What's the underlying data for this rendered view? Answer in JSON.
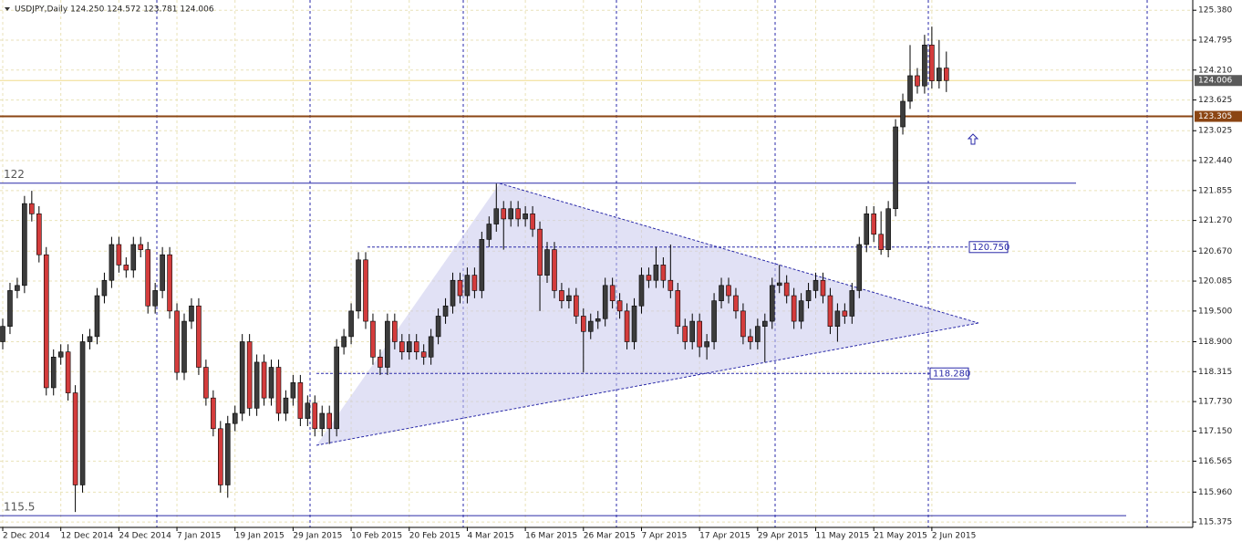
{
  "chart_data": {
    "type": "candlestick",
    "title": "USDJPY,Daily  124.250 124.572 123.781 124.006",
    "categories": [
      "2 Dec 2014",
      null,
      null,
      null,
      null,
      null,
      null,
      null,
      "12 Dec 2014",
      null,
      null,
      null,
      null,
      null,
      null,
      null,
      "24 Dec 2014",
      null,
      null,
      null,
      null,
      null,
      null,
      null,
      "7 Jan 2015",
      null,
      null,
      null,
      null,
      null,
      null,
      null,
      "19 Jan 2015",
      null,
      null,
      null,
      null,
      null,
      null,
      null,
      "29 Jan 2015",
      null,
      null,
      null,
      null,
      null,
      null,
      null,
      "10 Feb 2015",
      null,
      null,
      null,
      null,
      null,
      null,
      null,
      "20 Feb 2015",
      null,
      null,
      null,
      null,
      null,
      null,
      null,
      "4 Mar 2015",
      null,
      null,
      null,
      null,
      null,
      null,
      null,
      "16 Mar 2015",
      null,
      null,
      null,
      null,
      null,
      null,
      null,
      "26 Mar 2015",
      null,
      null,
      null,
      null,
      null,
      null,
      null,
      "7 Apr 2015",
      null,
      null,
      null,
      null,
      null,
      null,
      null,
      "17 Apr 2015",
      null,
      null,
      null,
      null,
      null,
      null,
      null,
      "29 Apr 2015",
      null,
      null,
      null,
      null,
      null,
      null,
      null,
      "11 May 2015",
      null,
      null,
      null,
      null,
      null,
      null,
      null,
      "21 May 2015",
      null,
      null,
      null,
      null,
      null,
      null,
      null,
      "2 Jun 2015",
      null,
      null
    ],
    "series": [
      {
        "name": "USDJPY",
        "up_color": "#3c3c3c",
        "down_color": "#d43c3c",
        "open": [
          118.9,
          119.2,
          119.9,
          120.0,
          121.6,
          121.4,
          120.6,
          118.0,
          118.6,
          118.7,
          117.9,
          116.1,
          118.9,
          119.0,
          119.8,
          120.1,
          120.8,
          120.4,
          120.3,
          120.8,
          120.7,
          119.6,
          119.9,
          120.6,
          119.5,
          118.3,
          119.3,
          119.6,
          118.4,
          117.8,
          117.2,
          116.1,
          117.3,
          117.5,
          118.9,
          117.6,
          118.5,
          117.8,
          118.4,
          117.5,
          117.8,
          118.1,
          117.4,
          117.7,
          117.2,
          117.5,
          117.2,
          118.8,
          119.0,
          119.5,
          120.5,
          119.3,
          118.6,
          118.4,
          119.3,
          118.9,
          118.7,
          118.9,
          118.7,
          118.6,
          119.0,
          119.4,
          119.6,
          120.1,
          119.8,
          120.2,
          119.9,
          120.9,
          121.2,
          121.5,
          121.3,
          121.5,
          121.3,
          121.4,
          121.1,
          120.2,
          120.7,
          119.9,
          119.7,
          119.8,
          119.4,
          119.1,
          119.3,
          119.35,
          120.0,
          119.7,
          119.5,
          118.9,
          119.6,
          120.2,
          120.1,
          120.4,
          120.1,
          119.9,
          119.2,
          118.9,
          119.3,
          118.8,
          118.9,
          119.7,
          120.0,
          119.8,
          119.5,
          119.0,
          118.9,
          119.2,
          119.3,
          120.0,
          120.05,
          119.8,
          119.3,
          119.7,
          119.9,
          120.1,
          119.8,
          119.2,
          119.5,
          119.4,
          119.9,
          120.8,
          121.4,
          121.0,
          120.7,
          121.5,
          123.1,
          123.6,
          124.1,
          123.9,
          124.7,
          124.0,
          124.25
        ],
        "high": [
          119.35,
          120.05,
          120.15,
          121.75,
          121.85,
          121.55,
          120.75,
          118.75,
          118.85,
          118.85,
          118.05,
          119.05,
          119.15,
          119.95,
          120.25,
          120.95,
          120.95,
          120.55,
          120.95,
          120.95,
          120.85,
          120.05,
          120.75,
          120.75,
          119.65,
          119.45,
          119.75,
          119.75,
          118.55,
          117.95,
          117.35,
          117.45,
          117.65,
          119.05,
          119.05,
          118.65,
          118.65,
          118.55,
          118.55,
          117.95,
          118.25,
          118.25,
          117.85,
          117.85,
          117.65,
          117.65,
          118.95,
          119.15,
          119.65,
          120.65,
          120.65,
          119.45,
          118.75,
          119.45,
          119.45,
          119.05,
          119.05,
          119.05,
          118.85,
          119.15,
          119.55,
          119.75,
          120.25,
          120.25,
          120.35,
          120.35,
          121.05,
          121.35,
          121.99,
          121.65,
          121.65,
          121.65,
          121.55,
          121.55,
          121.25,
          120.85,
          120.85,
          120.05,
          119.95,
          119.95,
          119.55,
          119.45,
          119.5,
          120.15,
          120.15,
          119.85,
          119.65,
          119.75,
          120.35,
          120.35,
          120.75,
          120.55,
          120.8,
          120.05,
          119.35,
          119.45,
          119.45,
          119.05,
          119.85,
          120.15,
          120.15,
          119.95,
          119.65,
          119.15,
          119.35,
          119.45,
          120.15,
          120.4,
          120.2,
          119.95,
          119.85,
          120.05,
          120.25,
          120.25,
          119.95,
          119.65,
          119.65,
          120.05,
          120.95,
          121.55,
          121.55,
          121.45,
          121.65,
          123.25,
          123.75,
          124.7,
          124.25,
          124.9,
          125.06,
          124.8,
          124.572
        ],
        "low": [
          118.75,
          119.05,
          119.75,
          119.85,
          121.25,
          120.45,
          117.85,
          117.85,
          118.45,
          117.75,
          115.57,
          115.95,
          118.75,
          118.85,
          119.65,
          119.95,
          120.25,
          120.15,
          120.15,
          120.55,
          119.45,
          119.45,
          119.75,
          119.35,
          118.15,
          118.15,
          119.15,
          118.25,
          117.65,
          117.05,
          115.95,
          115.85,
          117.15,
          117.35,
          117.45,
          117.45,
          117.65,
          117.65,
          117.35,
          117.35,
          117.65,
          117.25,
          117.25,
          117.05,
          117.05,
          116.9,
          117.05,
          118.65,
          118.85,
          119.35,
          119.15,
          118.45,
          118.25,
          118.25,
          118.75,
          118.55,
          118.55,
          118.55,
          118.45,
          118.45,
          118.85,
          119.25,
          119.45,
          119.65,
          119.65,
          119.75,
          119.75,
          120.75,
          121.05,
          120.7,
          121.15,
          121.15,
          121.15,
          120.95,
          119.5,
          120.05,
          119.75,
          119.55,
          119.55,
          119.25,
          118.3,
          118.95,
          119.15,
          119.2,
          119.55,
          119.35,
          118.75,
          118.75,
          119.45,
          119.95,
          119.95,
          119.95,
          119.75,
          119.05,
          118.75,
          118.75,
          118.6,
          118.55,
          118.75,
          119.55,
          119.65,
          119.35,
          118.85,
          118.75,
          118.75,
          118.5,
          119.15,
          119.85,
          119.65,
          119.15,
          119.15,
          119.55,
          119.75,
          119.65,
          119.05,
          118.9,
          119.25,
          119.25,
          119.75,
          120.65,
          120.85,
          120.6,
          120.55,
          121.35,
          122.95,
          123.45,
          123.75,
          123.75,
          123.85,
          123.85,
          123.781
        ],
        "close": [
          119.2,
          119.9,
          120.0,
          121.6,
          121.4,
          120.6,
          118.0,
          118.6,
          118.7,
          117.9,
          116.1,
          118.9,
          119.0,
          119.8,
          120.1,
          120.8,
          120.4,
          120.3,
          120.8,
          120.7,
          119.6,
          119.9,
          120.6,
          119.5,
          118.3,
          119.3,
          119.6,
          118.4,
          117.8,
          117.2,
          116.1,
          117.3,
          117.5,
          118.9,
          117.6,
          118.5,
          117.8,
          118.4,
          117.5,
          117.8,
          118.1,
          117.4,
          117.7,
          117.2,
          117.5,
          117.2,
          118.8,
          119.0,
          119.5,
          120.5,
          119.3,
          118.6,
          118.4,
          119.3,
          118.9,
          118.7,
          118.9,
          118.7,
          118.6,
          119.0,
          119.4,
          119.6,
          120.1,
          119.8,
          120.2,
          119.9,
          120.9,
          121.2,
          121.5,
          121.3,
          121.5,
          121.3,
          121.4,
          121.1,
          120.2,
          120.7,
          119.9,
          119.7,
          119.8,
          119.4,
          119.1,
          119.3,
          119.35,
          120.0,
          119.7,
          119.5,
          118.9,
          119.6,
          120.2,
          120.1,
          120.4,
          120.1,
          119.9,
          119.2,
          118.9,
          119.3,
          118.8,
          118.9,
          119.7,
          120.0,
          119.8,
          119.5,
          119.0,
          118.9,
          119.2,
          119.3,
          120.0,
          120.05,
          119.8,
          119.3,
          119.7,
          119.9,
          120.1,
          119.8,
          119.2,
          119.5,
          119.4,
          119.9,
          120.8,
          121.4,
          121.0,
          120.7,
          121.5,
          123.1,
          123.6,
          124.1,
          123.9,
          124.7,
          124.0,
          124.25,
          124.006
        ]
      }
    ],
    "ylim": [
      115.27,
      125.58
    ],
    "yticks": [
      {
        "value": 125.38,
        "label": "125.380"
      },
      124.795,
      {
        "value": 124.21,
        "label": "124.210"
      },
      123.625,
      123.025,
      {
        "value": 122.44,
        "label": "122.440"
      },
      121.855,
      {
        "value": 121.27,
        "label": "121.270"
      },
      {
        "value": 120.67,
        "label": "120.670"
      },
      120.085,
      {
        "value": 119.5,
        "label": "119.500"
      },
      {
        "value": 118.9,
        "label": "118.900"
      },
      118.315,
      {
        "value": 117.73,
        "label": "117.730"
      },
      {
        "value": 117.15,
        "label": "117.150"
      },
      116.565,
      {
        "value": 115.96,
        "label": "115.960"
      },
      115.375
    ],
    "grid": true,
    "hlines": [
      {
        "value": 124.006,
        "label": "124.006",
        "color": "#f0dc8c"
      },
      {
        "value": 123.305,
        "label": "123.305",
        "color": "#8b4513"
      },
      {
        "value": 122,
        "label": "122",
        "color": "#2a2aa8"
      },
      {
        "value": 115.5,
        "label": "115.5",
        "color": "#2a2aa8"
      },
      {
        "value": 120.75,
        "label": "120.750",
        "color": "#2a2aa8"
      },
      {
        "value": 118.28,
        "label": "118.280",
        "color": "#2a2aa8"
      }
    ]
  }
}
